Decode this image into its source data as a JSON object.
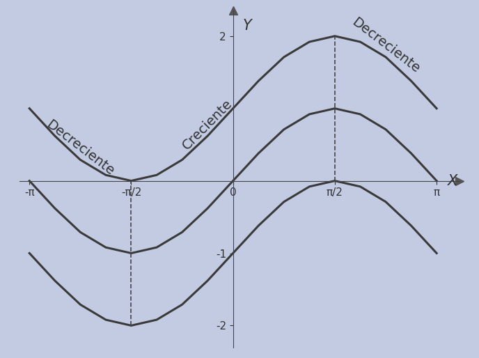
{
  "chart_data": {
    "type": "line",
    "x_label": "X",
    "y_label": "Y",
    "annotations": [
      "Decreciente",
      "Creciente",
      "Decreciente"
    ],
    "x": [
      -3.1416,
      -2.7489,
      -2.3562,
      -1.9635,
      -1.5708,
      -1.1781,
      -0.7854,
      -0.3927,
      0,
      0.3927,
      0.7854,
      1.1781,
      1.5708,
      1.9635,
      2.3562,
      2.7489,
      3.1416
    ],
    "series": [
      {
        "color": "#3a3a3a",
        "values": [
          1,
          0.62,
          0.29,
          0.08,
          0,
          0.08,
          0.29,
          0.62,
          1,
          1.38,
          1.71,
          1.92,
          2,
          1.92,
          1.71,
          1.38,
          1
        ]
      },
      {
        "color": "#3a3a3a",
        "values": [
          0,
          -0.38,
          -0.71,
          -0.92,
          -1,
          -0.92,
          -0.71,
          -0.38,
          0,
          0.38,
          0.71,
          0.92,
          1,
          0.92,
          0.71,
          0.38,
          0
        ]
      },
      {
        "color": "#3a3a3a",
        "values": [
          -1,
          -1.38,
          -1.71,
          -1.92,
          -2,
          -1.92,
          -1.71,
          -1.38,
          -1,
          -0.62,
          -0.29,
          -0.08,
          0,
          -0.08,
          -0.29,
          -0.62,
          -1
        ]
      }
    ],
    "vlines": [
      -1.5708,
      1.5708
    ],
    "xlim": [
      -3.3,
      3.5
    ],
    "ylim": [
      -2.3,
      2.35
    ],
    "xticks": [
      {
        "value": -3.1416,
        "label": "-π"
      },
      {
        "value": -1.5708,
        "label": "-π/2"
      },
      0,
      {
        "value": 1.5708,
        "label": "π/2"
      },
      {
        "value": 3.1416,
        "label": "π"
      }
    ],
    "yticks": [
      -2,
      -1,
      2
    ],
    "grid": false
  }
}
